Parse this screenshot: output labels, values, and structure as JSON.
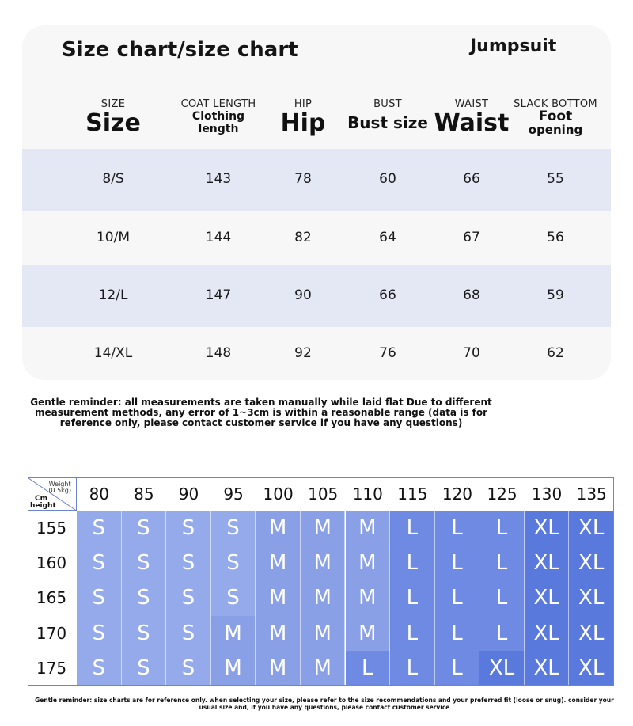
{
  "card": {
    "title": "Size chart/size chart",
    "product": "Jumpsuit"
  },
  "columns": [
    {
      "small": "SIZE",
      "big": "Size",
      "style": "big"
    },
    {
      "small": "COAT LENGTH",
      "big": "Clothing length",
      "line1": "Clothing",
      "line2": "length",
      "style": "two"
    },
    {
      "small": "HIP",
      "big": "Hip",
      "style": "big"
    },
    {
      "small": "BUST",
      "big": "Bust size",
      "style": "mid"
    },
    {
      "small": "WAIST",
      "big": "Waist",
      "style": "big"
    },
    {
      "small": "SLACK BOTTOM",
      "big": "Foot opening",
      "line1": "Foot",
      "line2": "opening",
      "style": "two"
    }
  ],
  "rows": [
    [
      "8/S",
      "143",
      "78",
      "60",
      "66",
      "55"
    ],
    [
      "10/M",
      "144",
      "82",
      "64",
      "67",
      "56"
    ],
    [
      "12/L",
      "147",
      "90",
      "66",
      "68",
      "59"
    ],
    [
      "14/XL",
      "148",
      "92",
      "76",
      "70",
      "62"
    ]
  ],
  "note": "Gentle reminder: all measurements are taken manually while laid flat Due to different measurement methods, any error of 1~3cm is within a reasonable range (data is for reference only, please contact customer service if you have any questions)",
  "grid": {
    "corner_weight": "Weight\n(0.5kg)",
    "corner_weight_line1": "Weight",
    "corner_weight_line2": "(0.5kg)",
    "corner_height_line1": "Cm",
    "corner_height_line2": "height",
    "weights": [
      "80",
      "85",
      "90",
      "95",
      "100",
      "105",
      "110",
      "115",
      "120",
      "125",
      "130",
      "135"
    ],
    "heights": [
      "155",
      "160",
      "165",
      "170",
      "175"
    ],
    "sizes": [
      [
        "S",
        "S",
        "S",
        "S",
        "M",
        "M",
        "M",
        "L",
        "L",
        "L",
        "XL",
        "XL"
      ],
      [
        "S",
        "S",
        "S",
        "S",
        "M",
        "M",
        "M",
        "L",
        "L",
        "L",
        "XL",
        "XL"
      ],
      [
        "S",
        "S",
        "S",
        "S",
        "M",
        "M",
        "M",
        "L",
        "L",
        "L",
        "XL",
        "XL"
      ],
      [
        "S",
        "S",
        "S",
        "M",
        "M",
        "M",
        "M",
        "L",
        "L",
        "L",
        "XL",
        "XL"
      ],
      [
        "S",
        "S",
        "S",
        "M",
        "M",
        "M",
        "L",
        "L",
        "L",
        "XL",
        "XL",
        "XL"
      ]
    ],
    "colors": {
      "S": "#95aaea",
      "M": "#8aa0e6",
      "L": "#6f8ae2",
      "XL": "#5a79dd"
    }
  },
  "bottom_note": "Gentle reminder: size charts are for reference only. when selecting your size, please refer to the size recommendations and your preferred fit (loose or snug). consider your usual size and, if you have any questions, please contact customer service"
}
